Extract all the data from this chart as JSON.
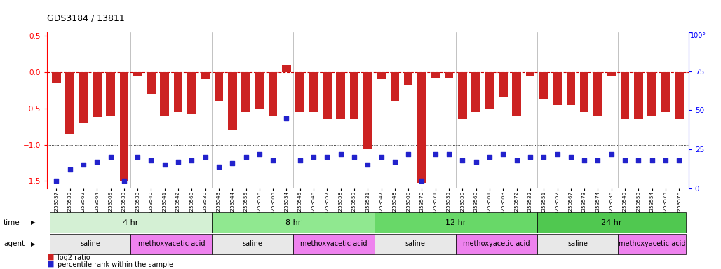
{
  "title": "GDS3184 / 13811",
  "samples": [
    "GSM253537",
    "GSM253539",
    "GSM253562",
    "GSM253564",
    "GSM253569",
    "GSM253533",
    "GSM253538",
    "GSM253540",
    "GSM253541",
    "GSM253542",
    "GSM253568",
    "GSM253530",
    "GSM253543",
    "GSM253544",
    "GSM253555",
    "GSM253556",
    "GSM253565",
    "GSM253534",
    "GSM253545",
    "GSM253546",
    "GSM253557",
    "GSM253558",
    "GSM253559",
    "GSM253531",
    "GSM253547",
    "GSM253548",
    "GSM253566",
    "GSM253570",
    "GSM253571",
    "GSM253535",
    "GSM253550",
    "GSM253560",
    "GSM253561",
    "GSM253563",
    "GSM253572",
    "GSM253532",
    "GSM253551",
    "GSM253552",
    "GSM253567",
    "GSM253573",
    "GSM253574",
    "GSM253536",
    "GSM253549",
    "GSM253553",
    "GSM253554",
    "GSM253575",
    "GSM253576"
  ],
  "log2_ratio": [
    -0.15,
    -0.85,
    -0.7,
    -0.62,
    -0.6,
    -1.5,
    -0.05,
    -0.3,
    -0.6,
    -0.55,
    -0.58,
    -0.1,
    -0.4,
    -0.8,
    -0.55,
    -0.5,
    -0.6,
    0.1,
    -0.55,
    -0.55,
    -0.65,
    -0.65,
    -0.65,
    -1.05,
    -0.1,
    -0.4,
    -0.18,
    -1.52,
    -0.08,
    -0.08,
    -0.65,
    -0.55,
    -0.5,
    -0.35,
    -0.6,
    -0.05,
    -0.38,
    -0.45,
    -0.45,
    -0.55,
    -0.6,
    -0.05,
    -0.65,
    -0.65,
    -0.6,
    -0.55,
    -0.65
  ],
  "percentile": [
    5,
    12,
    15,
    17,
    20,
    5,
    20,
    18,
    15,
    17,
    18,
    20,
    14,
    16,
    20,
    22,
    18,
    45,
    18,
    20,
    20,
    22,
    20,
    15,
    20,
    17,
    22,
    5,
    22,
    22,
    18,
    17,
    20,
    22,
    18,
    20,
    20,
    22,
    20,
    18,
    18,
    22,
    18,
    18,
    18,
    18,
    18
  ],
  "bar_color": "#cc2222",
  "dot_color": "#2222cc",
  "ylim_left": [
    -1.6,
    0.55
  ],
  "ylim_right": [
    0,
    100
  ],
  "yticks_left": [
    -1.5,
    -1.0,
    -0.5,
    0.0,
    0.5
  ],
  "yticks_right": [
    0,
    25,
    50,
    75,
    100
  ],
  "background_color": "#ffffff",
  "time_groups": [
    {
      "label": "4 hr",
      "start": 0,
      "end": 12,
      "color": "#d4f0d4"
    },
    {
      "label": "8 hr",
      "start": 12,
      "end": 24,
      "color": "#90e890"
    },
    {
      "label": "12 hr",
      "start": 24,
      "end": 36,
      "color": "#68d868"
    },
    {
      "label": "24 hr",
      "start": 36,
      "end": 47,
      "color": "#50c850"
    }
  ],
  "agent_groups": [
    {
      "label": "saline",
      "start": 0,
      "end": 6,
      "color": "#e8e8e8"
    },
    {
      "label": "methoxyacetic acid",
      "start": 6,
      "end": 12,
      "color": "#ee82ee"
    },
    {
      "label": "saline",
      "start": 12,
      "end": 18,
      "color": "#e8e8e8"
    },
    {
      "label": "methoxyacetic acid",
      "start": 18,
      "end": 24,
      "color": "#ee82ee"
    },
    {
      "label": "saline",
      "start": 24,
      "end": 30,
      "color": "#e8e8e8"
    },
    {
      "label": "methoxyacetic acid",
      "start": 30,
      "end": 36,
      "color": "#ee82ee"
    },
    {
      "label": "saline",
      "start": 36,
      "end": 42,
      "color": "#e8e8e8"
    },
    {
      "label": "methoxyacetic acid",
      "start": 42,
      "end": 47,
      "color": "#ee82ee"
    }
  ],
  "separator_positions": [
    6,
    12,
    18,
    24,
    30,
    36,
    42
  ]
}
